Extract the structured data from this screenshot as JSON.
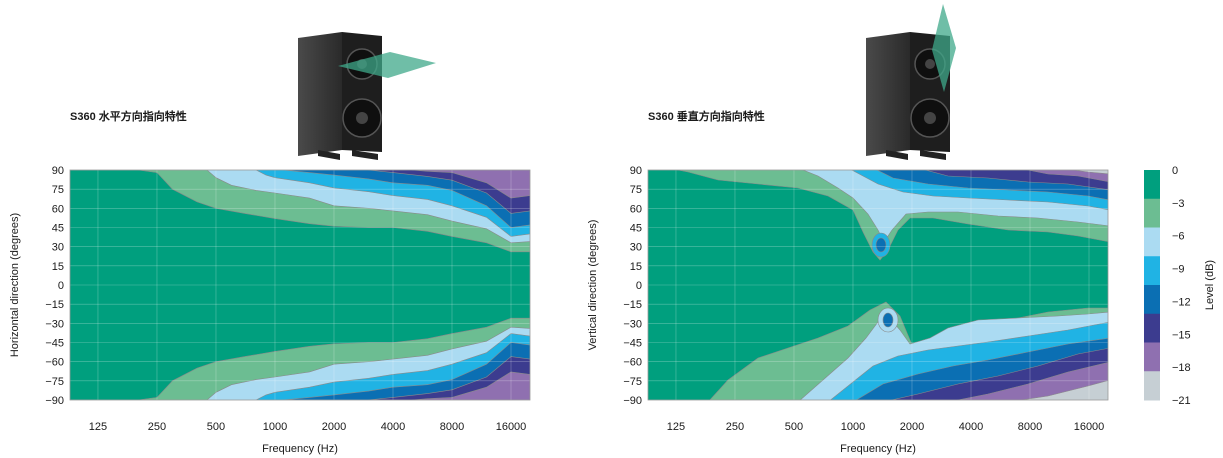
{
  "chart_data": [
    {
      "type": "heatmap",
      "title": "S360 水平方向指向特性",
      "xlabel": "Frequency (Hz)",
      "ylabel": "Horizontal direction (degrees)",
      "x_scale": "log",
      "x_ticks": [
        "125",
        "250",
        "500",
        "1000",
        "2000",
        "4000",
        "8000",
        "16000"
      ],
      "x_tick_values": [
        125,
        250,
        500,
        1000,
        2000,
        4000,
        8000,
        16000
      ],
      "xlim": [
        90,
        20000
      ],
      "y_ticks": [
        "90",
        "75",
        "60",
        "45",
        "30",
        "15",
        "0",
        "−15",
        "−30",
        "−45",
        "−60",
        "−75",
        "−90"
      ],
      "y_tick_values": [
        90,
        75,
        60,
        45,
        30,
        15,
        0,
        -15,
        -30,
        -45,
        -60,
        -75,
        -90
      ],
      "ylim": [
        -90,
        90
      ],
      "grid": true,
      "contour_edges_deg": [
        {
          "level_db": -3,
          "points": [
            [
              90,
              90
            ],
            [
              200,
              90
            ],
            [
              250,
              88
            ],
            [
              300,
              75
            ],
            [
              400,
              65
            ],
            [
              500,
              60
            ],
            [
              700,
              56
            ],
            [
              1000,
              52
            ],
            [
              1500,
              48
            ],
            [
              2000,
              46
            ],
            [
              3000,
              45
            ],
            [
              4000,
              45
            ],
            [
              6000,
              42
            ],
            [
              8000,
              38
            ],
            [
              12000,
              33
            ],
            [
              16000,
              26
            ],
            [
              20000,
              26
            ]
          ]
        },
        {
          "level_db": -6,
          "points": [
            [
              450,
              90
            ],
            [
              500,
              84
            ],
            [
              600,
              78
            ],
            [
              800,
              74
            ],
            [
              1000,
              72
            ],
            [
              1500,
              68
            ],
            [
              2000,
              62
            ],
            [
              3000,
              60
            ],
            [
              4000,
              58
            ],
            [
              6000,
              55
            ],
            [
              8000,
              50
            ],
            [
              12000,
              44
            ],
            [
              16000,
              33
            ],
            [
              20000,
              34
            ]
          ]
        },
        {
          "level_db": -9,
          "points": [
            [
              800,
              90
            ],
            [
              900,
              86
            ],
            [
              1000,
              84
            ],
            [
              1500,
              80
            ],
            [
              2000,
              76
            ],
            [
              3000,
              73
            ],
            [
              4000,
              70
            ],
            [
              6000,
              67
            ],
            [
              8000,
              62
            ],
            [
              12000,
              53
            ],
            [
              16000,
              38
            ],
            [
              20000,
              40
            ]
          ]
        },
        {
          "level_db": -12,
          "points": [
            [
              1100,
              90
            ],
            [
              1500,
              88
            ],
            [
              2000,
              86
            ],
            [
              3000,
              83
            ],
            [
              4000,
              80
            ],
            [
              6000,
              78
            ],
            [
              8000,
              74
            ],
            [
              12000,
              62
            ],
            [
              16000,
              45
            ],
            [
              20000,
              47
            ]
          ]
        },
        {
          "level_db": -15,
          "points": [
            [
              3000,
              90
            ],
            [
              4000,
              88
            ],
            [
              6000,
              85
            ],
            [
              8000,
              82
            ],
            [
              12000,
              72
            ],
            [
              16000,
              56
            ],
            [
              20000,
              58
            ]
          ]
        },
        {
          "level_db": -18,
          "points": [
            [
              5000,
              90
            ],
            [
              6000,
              89
            ],
            [
              8000,
              88
            ],
            [
              12000,
              80
            ],
            [
              16000,
              68
            ],
            [
              20000,
              70
            ]
          ]
        }
      ]
    },
    {
      "type": "heatmap",
      "title": "S360 垂直方向指向特性",
      "xlabel": "Frequency (Hz)",
      "ylabel": "Vertical direction (degrees)",
      "x_scale": "log",
      "x_ticks": [
        "125",
        "250",
        "500",
        "1000",
        "2000",
        "4000",
        "8000",
        "16000"
      ],
      "x_tick_values": [
        125,
        250,
        500,
        1000,
        2000,
        4000,
        8000,
        16000
      ],
      "xlim": [
        90,
        20000
      ],
      "y_ticks": [
        "90",
        "75",
        "60",
        "45",
        "30",
        "15",
        "0",
        "−15",
        "−30",
        "−45",
        "−60",
        "−75",
        "−90"
      ],
      "y_tick_values": [
        90,
        75,
        60,
        45,
        30,
        15,
        0,
        -15,
        -30,
        -45,
        -60,
        -75,
        -90
      ],
      "ylim": [
        -90,
        90
      ],
      "grid": true
    }
  ],
  "colorbar": {
    "label": "Level (dB)",
    "ticks": [
      "0",
      "−3",
      "−6",
      "−9",
      "−12",
      "−15",
      "−18",
      "−21"
    ],
    "colors": [
      "#009f7e",
      "#6cbd92",
      "#abdbf2",
      "#20b3e4",
      "#0b6fb3",
      "#3c3c8f",
      "#8f70b0",
      "#c6cfd4"
    ]
  },
  "images": {
    "horizontal_speaker": "speaker-horizontal-dispersion",
    "vertical_speaker": "speaker-vertical-dispersion"
  }
}
